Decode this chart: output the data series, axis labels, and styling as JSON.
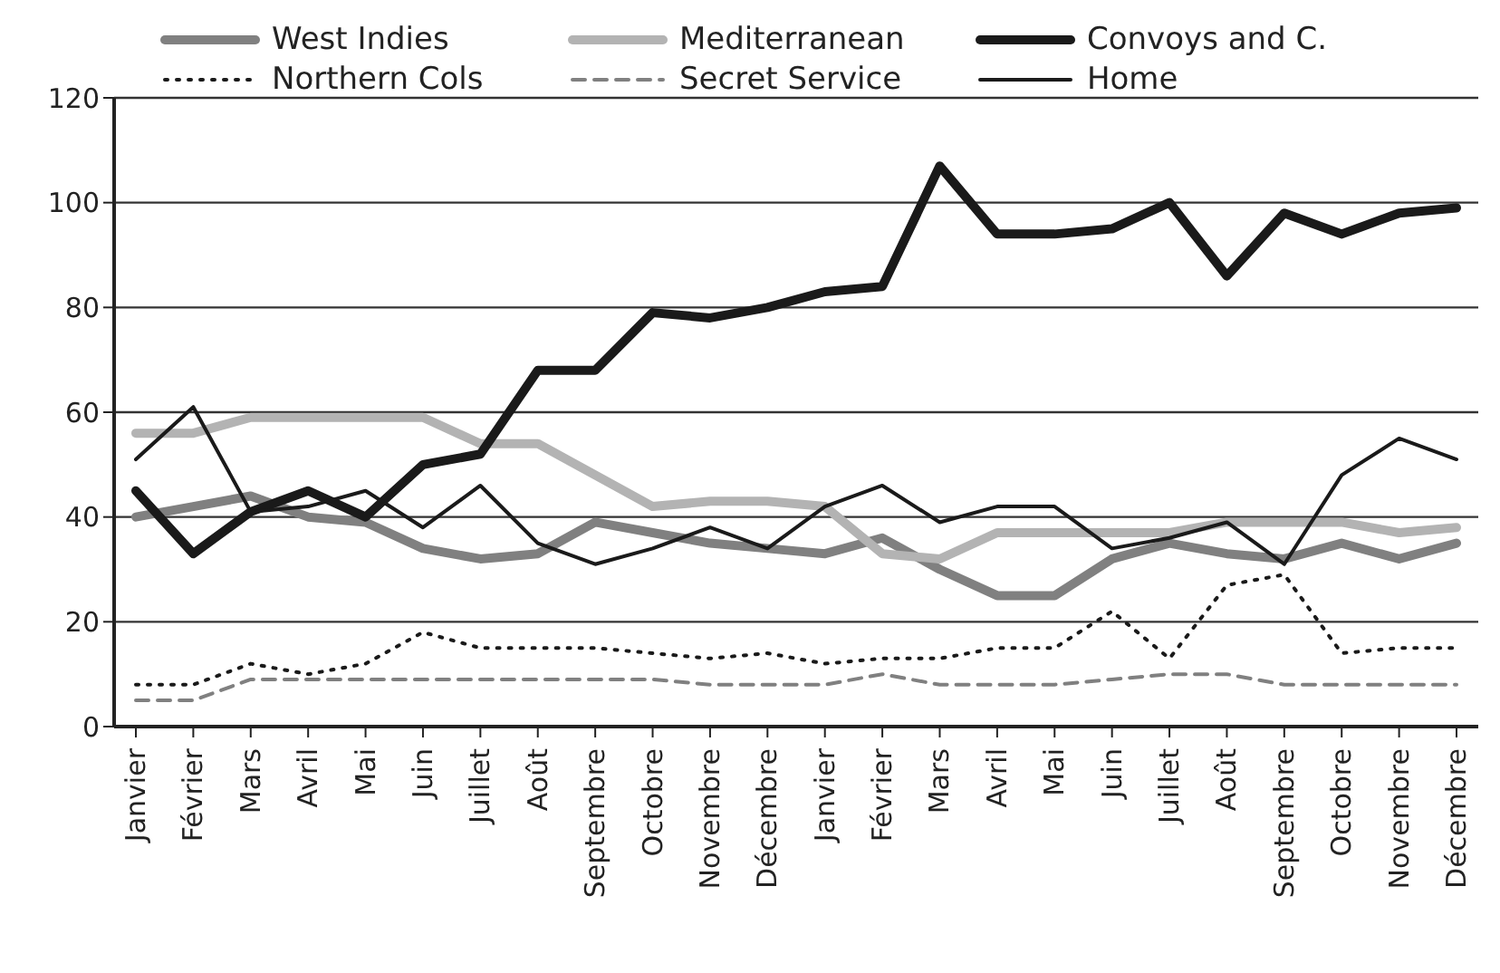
{
  "chart_data": {
    "type": "line",
    "categories": [
      "Janvier",
      "Février",
      "Mars",
      "Avril",
      "Mai",
      "Juin",
      "Juillet",
      "Août",
      "Septembre",
      "Octobre",
      "Novembre",
      "Décembre",
      "Janvier",
      "Février",
      "Mars",
      "Avril",
      "Mai",
      "Juin",
      "Juillet",
      "Août",
      "Septembre",
      "Octobre",
      "Novembre",
      "Décembre"
    ],
    "series": [
      {
        "name": "West Indies",
        "color": "#808080",
        "line_style": "solid",
        "values": [
          40,
          42,
          44,
          40,
          39,
          34,
          32,
          33,
          39,
          37,
          35,
          34,
          33,
          36,
          30,
          25,
          25,
          32,
          35,
          33,
          32,
          35,
          32,
          35
        ]
      },
      {
        "name": "Mediterranean",
        "color": "#b3b3b3",
        "line_style": "solid",
        "values": [
          56,
          56,
          59,
          59,
          59,
          59,
          54,
          54,
          48,
          42,
          43,
          43,
          42,
          33,
          32,
          37,
          37,
          37,
          37,
          39,
          39,
          39,
          37,
          38
        ]
      },
      {
        "name": "Convoys and C.",
        "color": "#1a1a1a",
        "line_style": "solid",
        "values": [
          45,
          33,
          41,
          45,
          40,
          50,
          52,
          68,
          68,
          79,
          78,
          80,
          83,
          84,
          107,
          94,
          94,
          95,
          100,
          86,
          98,
          94,
          98,
          99
        ]
      },
      {
        "name": "Northern Cols",
        "color": "#1a1a1a",
        "line_style": "dotted",
        "values": [
          8,
          8,
          12,
          10,
          12,
          18,
          15,
          15,
          15,
          14,
          13,
          14,
          12,
          13,
          13,
          15,
          15,
          22,
          13,
          27,
          29,
          14,
          15,
          15
        ]
      },
      {
        "name": "Secret Service",
        "color": "#808080",
        "line_style": "dashed",
        "values": [
          5,
          5,
          9,
          9,
          9,
          9,
          9,
          9,
          9,
          9,
          8,
          8,
          8,
          10,
          8,
          8,
          8,
          9,
          10,
          10,
          8,
          8,
          8,
          8
        ]
      },
      {
        "name": "Home",
        "color": "#1a1a1a",
        "line_style": "solid",
        "values": [
          51,
          61,
          41,
          42,
          45,
          38,
          46,
          35,
          31,
          34,
          38,
          34,
          42,
          46,
          39,
          42,
          42,
          34,
          36,
          39,
          31,
          48,
          55,
          51
        ]
      }
    ],
    "ylim": [
      0,
      120
    ],
    "yticks": [
      0,
      20,
      40,
      60,
      80,
      100,
      120
    ],
    "grid": "y",
    "legend": "top",
    "marker": "none"
  }
}
